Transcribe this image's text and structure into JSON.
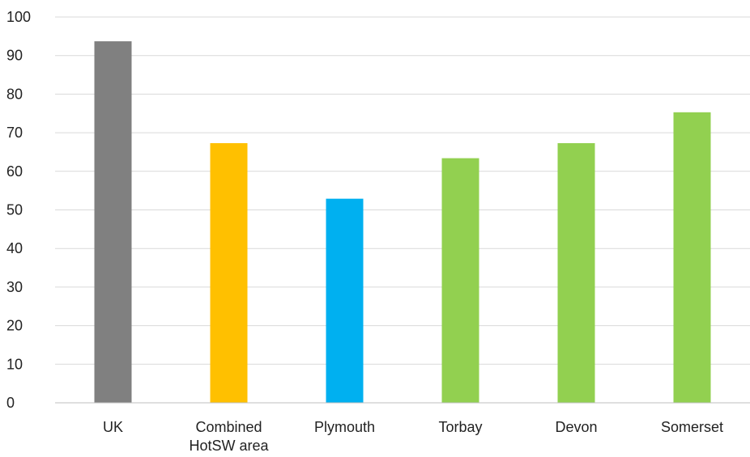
{
  "chart_data": {
    "type": "bar",
    "title": "",
    "xlabel": "",
    "ylabel": "",
    "categories": [
      "UK",
      "Combined HotSW area",
      "Plymouth",
      "Torbay",
      "Devon",
      "Somerset"
    ],
    "category_label_lines": [
      [
        "UK"
      ],
      [
        "Combined",
        "HotSW area"
      ],
      [
        "Plymouth"
      ],
      [
        "Torbay"
      ],
      [
        "Devon"
      ],
      [
        "Somerset"
      ]
    ],
    "values": [
      93.7,
      67.3,
      52.9,
      63.4,
      67.3,
      75.3
    ],
    "bar_colors": [
      "#808080",
      "#FFC000",
      "#00B0F0",
      "#92D050",
      "#92D050",
      "#92D050"
    ],
    "ylim": [
      0,
      100
    ],
    "yticks": [
      0,
      10,
      20,
      30,
      40,
      50,
      60,
      70,
      80,
      90,
      100
    ],
    "grid": true,
    "legend": "none"
  }
}
